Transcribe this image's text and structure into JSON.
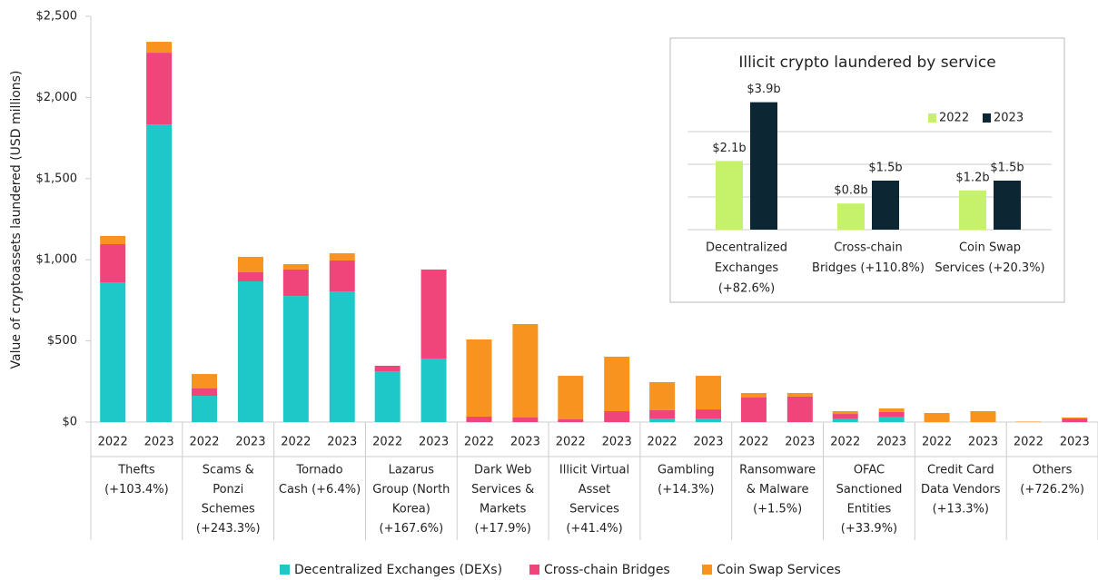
{
  "chart_data": [
    {
      "type": "stacked_bar",
      "y_label": "Value of cryptoassets laundered (USD millions)",
      "categories": [
        "2022",
        "2023",
        "2022",
        "2023",
        "2022",
        "2023",
        "2022",
        "2023",
        "2022",
        "2023",
        "2022",
        "2023",
        "2022",
        "2023",
        "2022",
        "2023",
        "2022",
        "2023",
        "2022",
        "2023",
        "2022",
        "2023"
      ],
      "group_labels": [
        [
          "Thefts",
          "(+103.4%)"
        ],
        [
          "Scams &",
          "Ponzi",
          "Schemes",
          "(+243.3%)"
        ],
        [
          "Tornado",
          "Cash (+6.4%)"
        ],
        [
          "Lazarus",
          "Group (North",
          "Korea)",
          "(+167.6%)"
        ],
        [
          "Dark Web",
          "Services &",
          "Markets",
          "(+17.9%)"
        ],
        [
          "Illicit Virtual",
          "Asset",
          "Services",
          "(+41.4%)"
        ],
        [
          "Gambling",
          "(+14.3%)"
        ],
        [
          "Ransomware",
          "& Malware",
          "(+1.5%)"
        ],
        [
          "OFAC",
          "Sanctioned",
          "Entities",
          "(+33.9%)"
        ],
        [
          "Credit Card",
          "Data Vendors",
          "(+13.3%)"
        ],
        [
          "Others",
          "(+726.2%)"
        ]
      ],
      "series": [
        {
          "name": "Decentralized Exchanges (DEXs)",
          "color": "#1ec8c8",
          "values": [
            861,
            1834,
            162,
            867,
            777,
            805,
            313,
            391,
            0,
            0,
            0,
            0,
            22,
            22,
            0,
            0,
            20,
            30,
            0,
            0,
            0,
            0
          ]
        },
        {
          "name": "Cross-chain Bridges",
          "color": "#f0457a",
          "values": [
            235,
            442,
            45,
            56,
            163,
            191,
            34,
            549,
            34,
            28,
            17,
            67,
            51,
            56,
            151,
            157,
            30,
            32,
            0,
            0,
            0,
            22
          ]
        },
        {
          "name": "Coin Swap Services",
          "color": "#f7931e",
          "values": [
            51,
            67,
            89,
            95,
            33,
            44,
            0,
            0,
            475,
            576,
            268,
            336,
            173,
            207,
            28,
            22,
            17,
            22,
            56,
            67,
            3,
            6
          ]
        }
      ],
      "ylim": [
        0,
        2500
      ],
      "yticks": [
        {
          "value": 0,
          "label": "$0"
        },
        {
          "value": 500,
          "label": "$500"
        },
        {
          "value": 1000,
          "label": "$1,000"
        },
        {
          "value": 1500,
          "label": "$1,500"
        },
        {
          "value": 2000,
          "label": "$2,000"
        },
        {
          "value": 2500,
          "label": "$2,500"
        }
      ],
      "legend": "bottom"
    },
    {
      "type": "bar",
      "title": "Illicit crypto laundered by service",
      "categories": [
        [
          "Decentralized",
          "Exchanges",
          "(+82.6%)"
        ],
        [
          "Cross-chain",
          "Bridges (+110.8%)"
        ],
        [
          "Coin Swap",
          "Services (+20.3%)"
        ]
      ],
      "series": [
        {
          "name": "2022",
          "color": "#c6f16a",
          "values": [
            2.1,
            0.8,
            1.2
          ],
          "value_labels": [
            "$2.1b",
            "$0.8b",
            "$1.2b"
          ]
        },
        {
          "name": "2023",
          "color": "#0d2633",
          "values": [
            3.9,
            1.5,
            1.5
          ],
          "value_labels": [
            "$3.9b",
            "$1.5b",
            "$1.5b"
          ]
        }
      ],
      "ylim": [
        0,
        4
      ],
      "gridlines": [
        0,
        1,
        2,
        3
      ],
      "legend": "top-right"
    }
  ]
}
